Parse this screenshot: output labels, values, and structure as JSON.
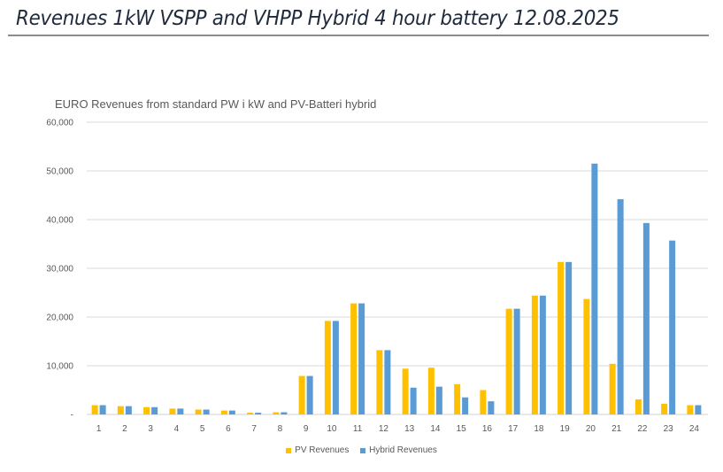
{
  "page": {
    "title": "Revenues 1kW VSPP and VHPP Hybrid 4 hour battery  12.08.2025"
  },
  "chart_data": {
    "type": "bar",
    "title": "EURO Revenues from standard PW i kW and PV-Batteri hybrid",
    "xlabel": "",
    "ylabel": "",
    "categories": [
      "1",
      "2",
      "3",
      "4",
      "5",
      "6",
      "7",
      "8",
      "9",
      "10",
      "11",
      "12",
      "13",
      "14",
      "15",
      "16",
      "17",
      "18",
      "19",
      "20",
      "21",
      "22",
      "23",
      "24"
    ],
    "series": [
      {
        "name": "PV Revenues",
        "color": "#FFC000",
        "values": [
          1900,
          1700,
          1500,
          1200,
          1000,
          800,
          350,
          450,
          7900,
          19200,
          22800,
          13200,
          9400,
          9600,
          6200,
          5000,
          21700,
          24400,
          31300,
          23700,
          10400,
          3100,
          2200,
          1900
        ]
      },
      {
        "name": "Hybrid Revenues",
        "color": "#5B9BD5",
        "values": [
          1900,
          1700,
          1500,
          1200,
          1000,
          800,
          350,
          450,
          7900,
          19200,
          22800,
          13200,
          5500,
          5700,
          3500,
          2700,
          21700,
          24400,
          31300,
          51500,
          44200,
          39300,
          35700,
          1900
        ]
      }
    ],
    "ylim": [
      0,
      60000
    ],
    "yticks": [
      0,
      10000,
      20000,
      30000,
      40000,
      50000,
      60000
    ],
    "ytick_labels": [
      "-",
      "10,000",
      "20,000",
      "30,000",
      "40,000",
      "50,000",
      "60,000"
    ],
    "grid": true,
    "legend_position": "bottom"
  }
}
